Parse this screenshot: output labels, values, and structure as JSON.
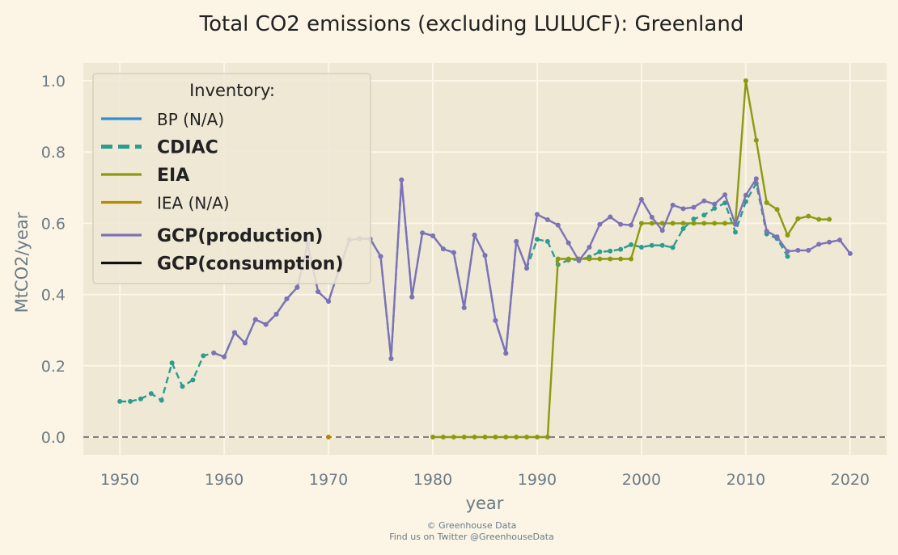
{
  "chart_data": {
    "type": "line",
    "title": "Total CO2 emissions (excluding LULUCF): Greenland",
    "xlabel": "year",
    "ylabel": "MtCO2/year",
    "xlim": [
      1946.5,
      2023.5
    ],
    "ylim": [
      -0.05,
      1.05
    ],
    "xticks": [
      "1950",
      "1960",
      "1970",
      "1980",
      "1990",
      "2000",
      "2010",
      "2020"
    ],
    "yticks": [
      "0.0",
      "0.2",
      "0.4",
      "0.6",
      "0.8",
      "1.0"
    ],
    "grid": true,
    "baseline": 0.0,
    "legend": {
      "title": "Inventory:",
      "position": "top-left",
      "entries": [
        {
          "label": "BP (N/A)",
          "color": "#2e8fd8",
          "style": "solid",
          "bold": false
        },
        {
          "label": "CDIAC",
          "color": "#2a9d8f",
          "style": "dashed",
          "bold": true
        },
        {
          "label": "EIA",
          "color": "#8b9a0e",
          "style": "solid",
          "bold": true
        },
        {
          "label": "IEA (N/A)",
          "color": "#b58a00",
          "style": "solid",
          "bold": false
        },
        {
          "label": "GCP(production)",
          "color": "#7d72b8",
          "style": "solid",
          "bold": true
        },
        {
          "label": "GCP(consumption)",
          "color": "#111111",
          "style": "solid",
          "bold": true
        }
      ]
    },
    "series": [
      {
        "name": "CDIAC",
        "color": "#2a9d8f",
        "style": "dashed",
        "x": [
          1950,
          1951,
          1952,
          1953,
          1954,
          1955,
          1956,
          1957,
          1958,
          1959,
          1960,
          1961,
          1962,
          1963,
          1964,
          1965,
          1966,
          1967,
          1968,
          1969,
          1970,
          1971,
          1972,
          1973,
          1974,
          1975,
          1976,
          1977,
          1978,
          1979,
          1980,
          1981,
          1982,
          1983,
          1984,
          1985,
          1986,
          1987,
          1988,
          1989,
          1990,
          1991,
          1992,
          1993,
          1994,
          1995,
          1996,
          1997,
          1998,
          1999,
          2000,
          2001,
          2002,
          2003,
          2004,
          2005,
          2006,
          2007,
          2008,
          2009,
          2010,
          2011,
          2012,
          2013,
          2014
        ],
        "values": [
          0.1,
          0.1,
          0.107,
          0.122,
          0.103,
          0.208,
          0.142,
          0.16,
          0.228,
          0.236,
          0.225,
          0.293,
          0.264,
          0.33,
          0.316,
          0.345,
          0.388,
          0.42,
          0.542,
          0.408,
          0.381,
          0.47,
          0.554,
          0.557,
          0.556,
          0.507,
          0.22,
          0.722,
          0.393,
          0.573,
          0.565,
          0.528,
          0.518,
          0.363,
          0.567,
          0.51,
          0.327,
          0.235,
          0.549,
          0.474,
          0.555,
          0.549,
          0.484,
          0.497,
          0.498,
          0.505,
          0.52,
          0.522,
          0.527,
          0.54,
          0.533,
          0.538,
          0.538,
          0.532,
          0.585,
          0.612,
          0.623,
          0.642,
          0.657,
          0.575,
          0.661,
          0.712,
          0.57,
          0.557,
          0.507
        ]
      },
      {
        "name": "EIA",
        "color": "#8b9a0e",
        "style": "solid",
        "x": [
          1980,
          1981,
          1982,
          1983,
          1984,
          1985,
          1986,
          1987,
          1988,
          1989,
          1990,
          1991,
          1992,
          1993,
          1994,
          1995,
          1996,
          1997,
          1998,
          1999,
          2000,
          2001,
          2002,
          2003,
          2004,
          2005,
          2006,
          2007,
          2008,
          2009,
          2010,
          2011,
          2012,
          2013,
          2014,
          2015,
          2016,
          2017,
          2018
        ],
        "values": [
          0,
          0,
          0,
          0,
          0,
          0,
          0,
          0,
          0,
          0,
          0,
          0,
          0.5,
          0.5,
          0.5,
          0.5,
          0.5,
          0.5,
          0.5,
          0.5,
          0.6,
          0.6,
          0.6,
          0.6,
          0.6,
          0.6,
          0.6,
          0.6,
          0.6,
          0.6,
          1.0,
          0.833,
          0.658,
          0.639,
          0.567,
          0.613,
          0.62,
          0.611,
          0.611
        ]
      },
      {
        "name": "IEA (N/A)",
        "color": "#b58a00",
        "style": "point",
        "x": [
          1970
        ],
        "values": [
          0
        ]
      },
      {
        "name": "GCP(production)",
        "color": "#7d72b8",
        "style": "solid",
        "x": [
          1959,
          1960,
          1961,
          1962,
          1963,
          1964,
          1965,
          1966,
          1967,
          1968,
          1969,
          1970,
          1971,
          1972,
          1973,
          1974,
          1975,
          1976,
          1977,
          1978,
          1979,
          1980,
          1981,
          1982,
          1983,
          1984,
          1985,
          1986,
          1987,
          1988,
          1989,
          1990,
          1991,
          1992,
          1993,
          1994,
          1995,
          1996,
          1997,
          1998,
          1999,
          2000,
          2001,
          2002,
          2003,
          2004,
          2005,
          2006,
          2007,
          2008,
          2009,
          2010,
          2011,
          2012,
          2013,
          2014,
          2015,
          2016,
          2017,
          2018,
          2019,
          2020
        ],
        "values": [
          0.236,
          0.225,
          0.293,
          0.264,
          0.33,
          0.316,
          0.345,
          0.388,
          0.42,
          0.542,
          0.408,
          0.381,
          0.47,
          0.554,
          0.557,
          0.556,
          0.507,
          0.22,
          0.722,
          0.393,
          0.573,
          0.565,
          0.528,
          0.518,
          0.363,
          0.567,
          0.51,
          0.327,
          0.235,
          0.549,
          0.474,
          0.625,
          0.61,
          0.595,
          0.545,
          0.495,
          0.533,
          0.597,
          0.618,
          0.597,
          0.595,
          0.667,
          0.617,
          0.58,
          0.651,
          0.641,
          0.645,
          0.663,
          0.654,
          0.68,
          0.597,
          0.679,
          0.725,
          0.578,
          0.562,
          0.521,
          0.524,
          0.524,
          0.541,
          0.547,
          0.553,
          0.515
        ]
      }
    ]
  },
  "footer": {
    "credit": "© Greenhouse Data",
    "twitter": "Find us on Twitter @GreenhouseData"
  }
}
